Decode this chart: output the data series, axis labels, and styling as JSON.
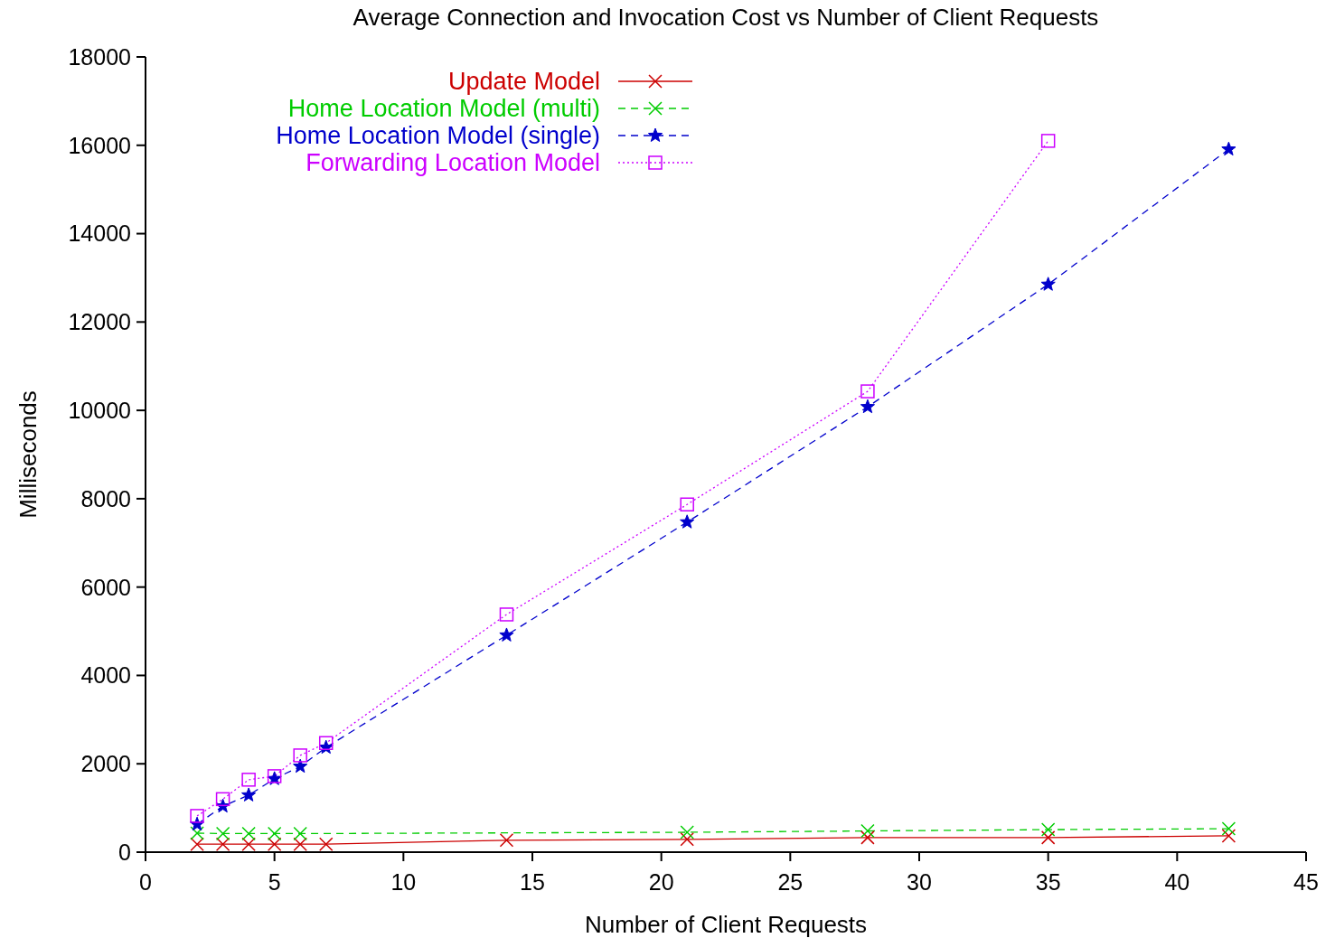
{
  "chart_data": {
    "type": "line",
    "title": "Average Connection and Invocation Cost vs Number of Client Requests",
    "xlabel": "Number of Client Requests",
    "ylabel": "Milliseconds",
    "xlim": [
      0,
      45
    ],
    "xticks": [
      0,
      5,
      10,
      15,
      20,
      25,
      30,
      35,
      40,
      45
    ],
    "ylim": [
      0,
      18000
    ],
    "yticks": [
      0,
      2000,
      4000,
      6000,
      8000,
      10000,
      12000,
      14000,
      16000,
      18000
    ],
    "grid": false,
    "legend": "top left",
    "series": [
      {
        "name": "Update Model",
        "color": "#cc0000",
        "marker": "cross",
        "line_style": "solid",
        "x": [
          2,
          3,
          4,
          5,
          6,
          7,
          14,
          21,
          28,
          35,
          42
        ],
        "values": [
          180,
          180,
          180,
          180,
          180,
          180,
          270,
          290,
          330,
          330,
          370
        ]
      },
      {
        "name": "Home Location Model (multi)",
        "color": "#00cc00",
        "marker": "cross",
        "line_style": "dashed",
        "x": [
          2,
          3,
          4,
          5,
          6,
          21,
          28,
          35,
          42
        ],
        "values": [
          430,
          420,
          420,
          420,
          420,
          450,
          480,
          510,
          530
        ]
      },
      {
        "name": "Home Location Model (single)",
        "color": "#0000cc",
        "marker": "star",
        "line_style": "dashed",
        "x": [
          2,
          3,
          4,
          5,
          6,
          7,
          14,
          21,
          28,
          35,
          42
        ],
        "values": [
          630,
          1040,
          1290,
          1660,
          1940,
          2370,
          4910,
          7470,
          10080,
          12850,
          15910
        ]
      },
      {
        "name": "Forwarding Location Model",
        "color": "#cc00ff",
        "marker": "square",
        "line_style": "dotted",
        "x": [
          2,
          3,
          4,
          5,
          6,
          7,
          14,
          21,
          28,
          35
        ],
        "values": [
          820,
          1200,
          1640,
          1720,
          2190,
          2470,
          5380,
          7870,
          10430,
          16100
        ]
      }
    ]
  }
}
